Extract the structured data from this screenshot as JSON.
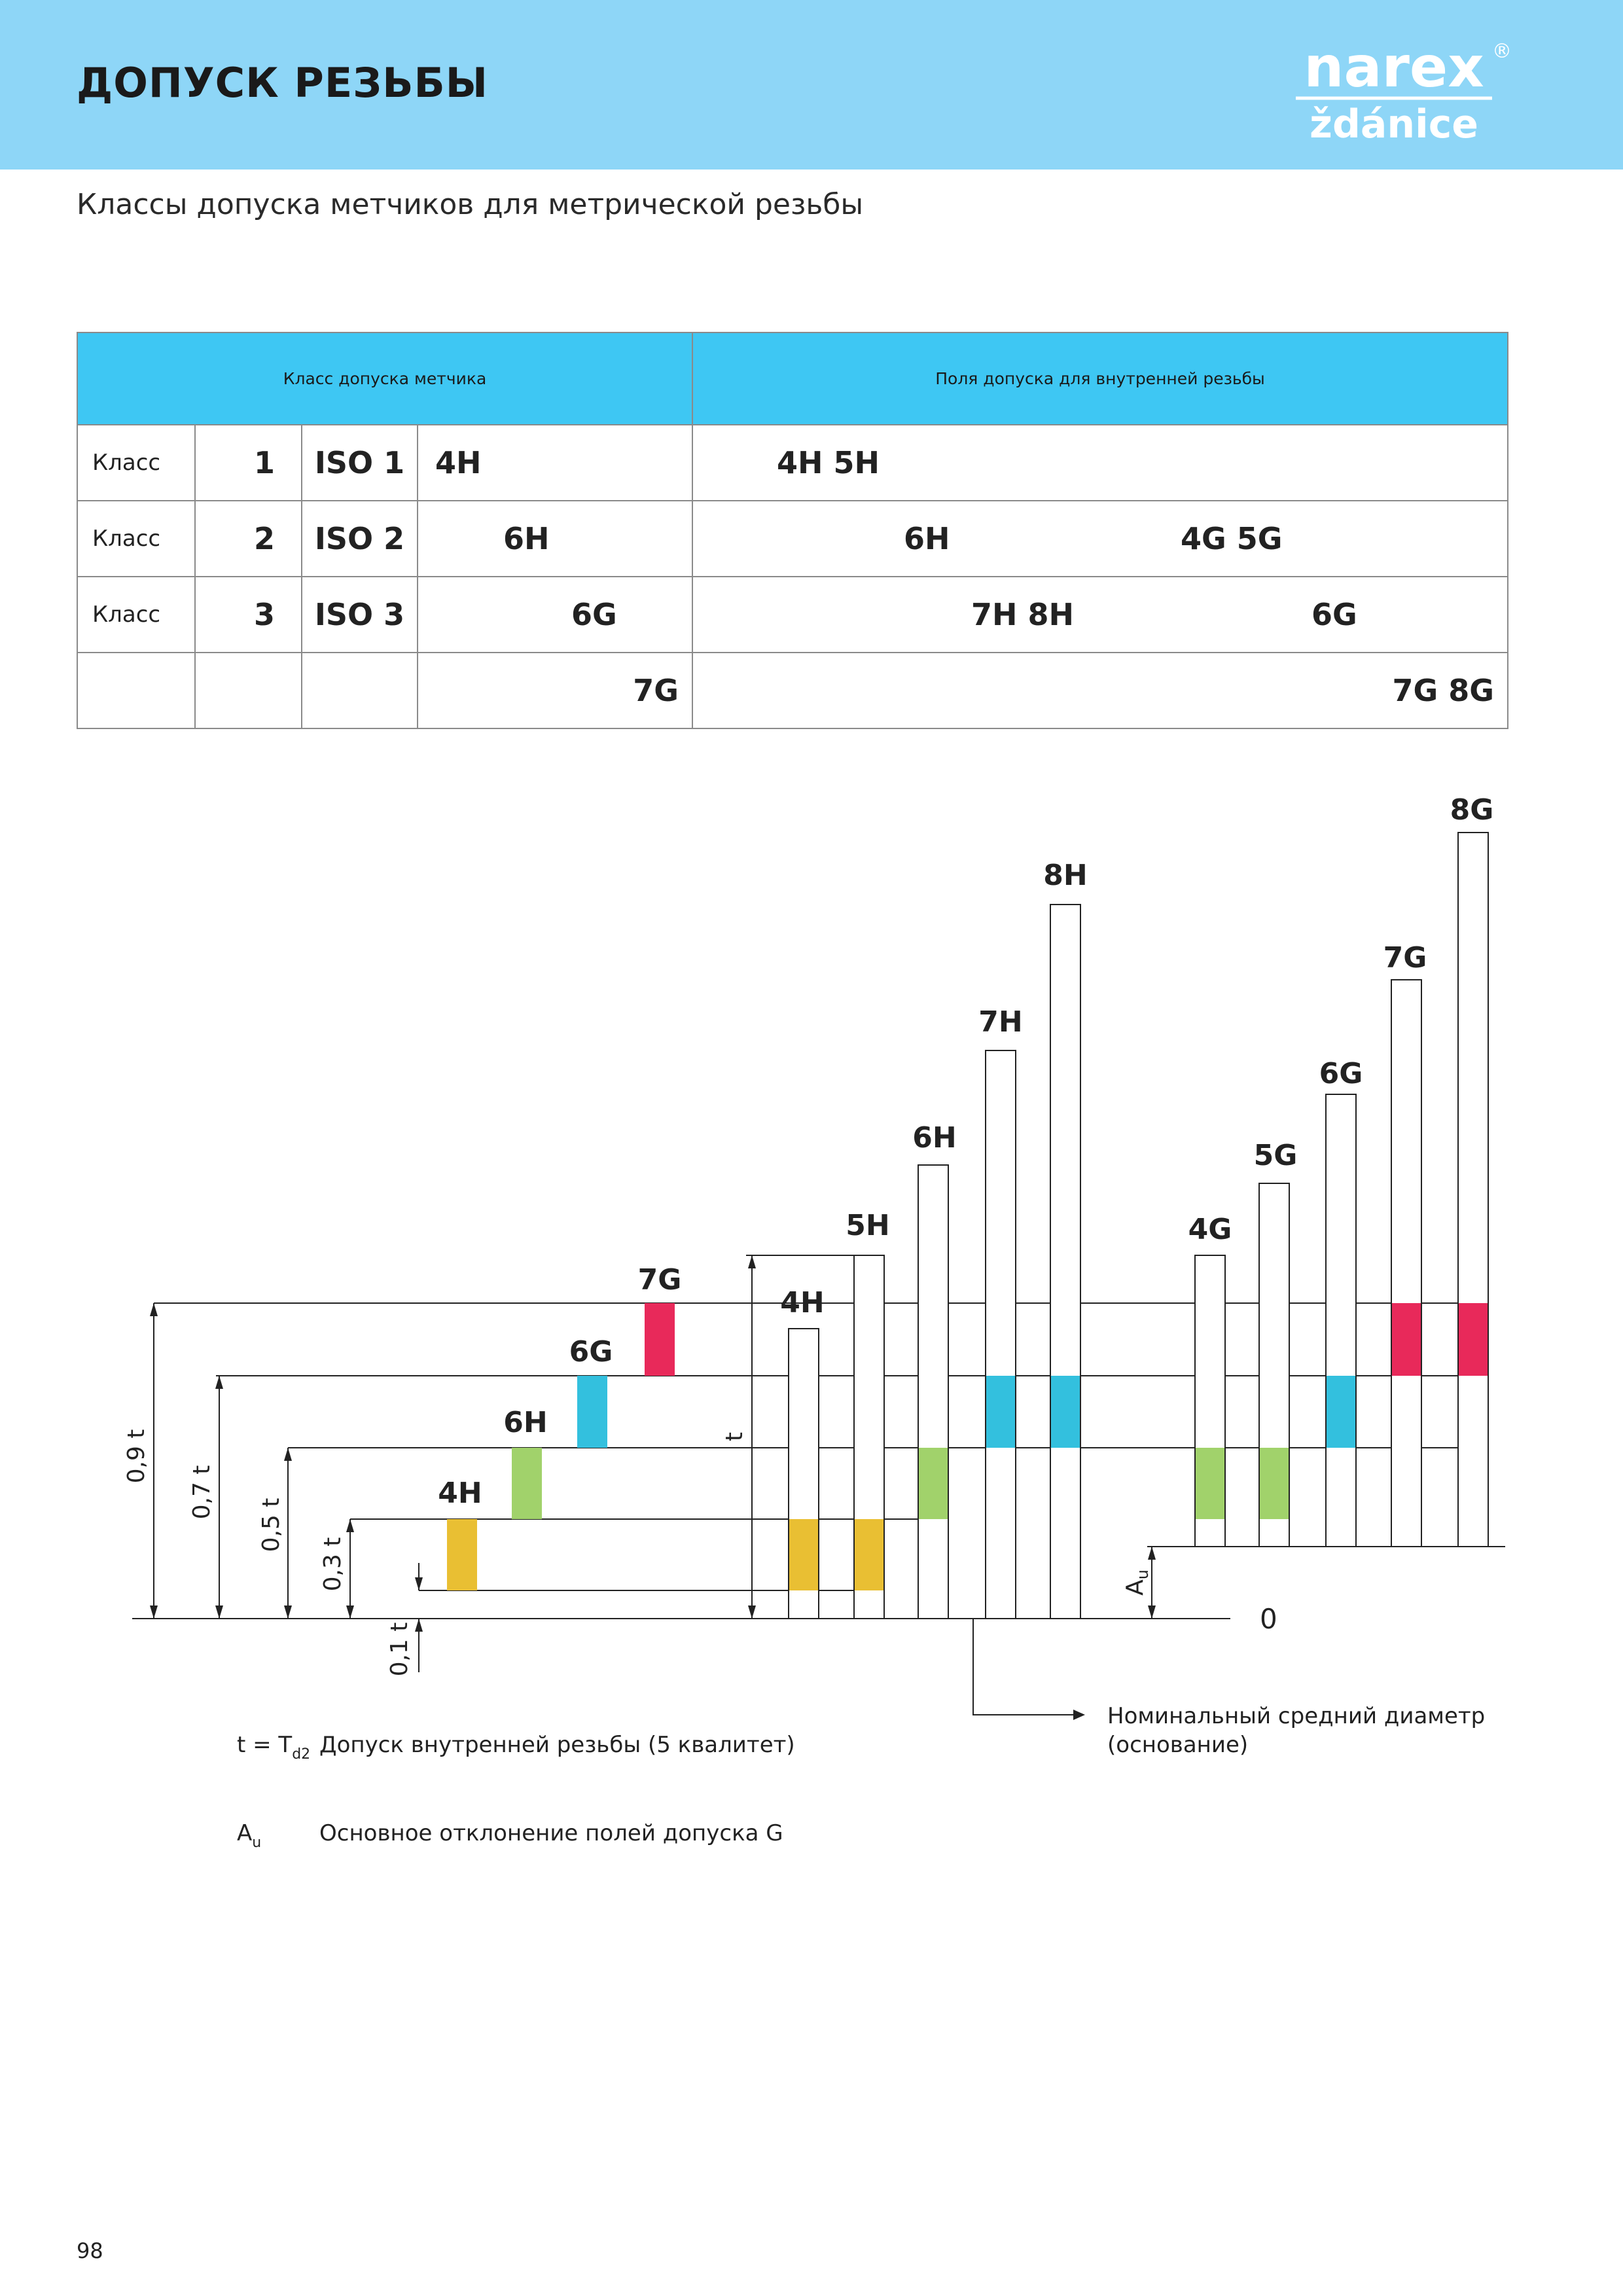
{
  "header": {
    "title": "ДОПУСК РЕЗЬБЫ",
    "logo_text_top": "narex",
    "logo_text_bottom": "ždánice",
    "logo_registered": "®"
  },
  "subtitle": "Классы допуска метчиков для метрической резьбы",
  "table": {
    "col1_header": "Класс допуска метчика",
    "col2_header": "Поля допуска для внутренней резьбы",
    "rows": [
      {
        "label": "Класс",
        "num": "1",
        "iso": "ISO 1",
        "tap": "4H",
        "fields_a": "4H  5H",
        "fields_b": ""
      },
      {
        "label": "Класс",
        "num": "2",
        "iso": "ISO 2",
        "tap": "6H",
        "fields_a": "6H",
        "fields_b": "4G  5G"
      },
      {
        "label": "Класс",
        "num": "3",
        "iso": "ISO 3",
        "tap": "6G",
        "fields_a": "7H  8H",
        "fields_b": "6G"
      },
      {
        "label": "",
        "num": "",
        "iso": "",
        "tap": "7G",
        "fields_a": "",
        "fields_b": "7G  8G"
      }
    ]
  },
  "diagram": {
    "colors": {
      "yellow": "#e9bf33",
      "green": "#a1d26b",
      "cyan": "#33c0de",
      "magenta": "#e8295a",
      "line": "#222222"
    },
    "tap_labels": [
      "4H",
      "6H",
      "6G",
      "7G"
    ],
    "h_labels": [
      "4H",
      "5H",
      "6H",
      "7H",
      "8H"
    ],
    "g_labels": [
      "4G",
      "5G",
      "6G",
      "7G",
      "8G"
    ],
    "axis_labels": [
      "0,9 t",
      "0,7 t",
      "0,5 t",
      "0,3 t",
      "0,1 t"
    ],
    "t_label": "t",
    "au_label": "A",
    "au_sub": "u",
    "zero_label": "0",
    "nominal_line1": "Номинальный средний диаметр",
    "nominal_line2": "(основание)"
  },
  "legend": {
    "t_symbol": "t = T",
    "t_sub": "d2",
    "t_text": "Допуск внутренней резьбы (5 квалитет)",
    "au_symbol": "A",
    "au_sub": "u",
    "au_text": "Основное отклонение полей допуска G"
  },
  "page_number": "98"
}
